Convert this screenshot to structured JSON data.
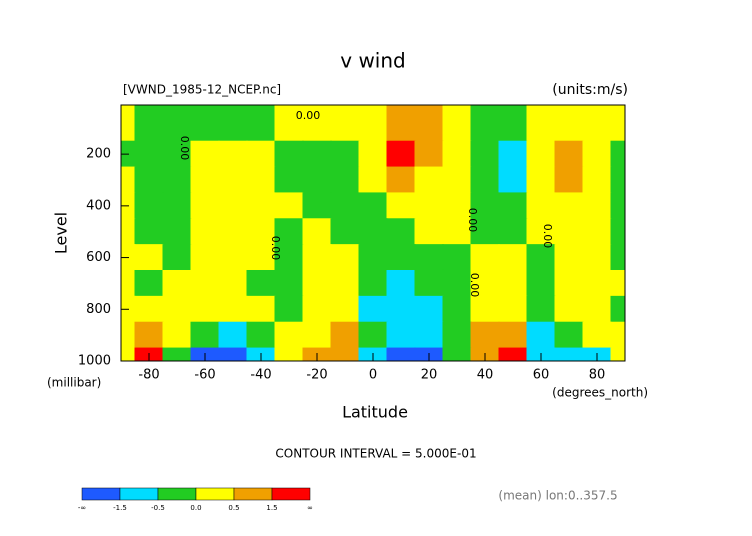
{
  "chart_data": {
    "type": "contour",
    "title": "v wind",
    "subtitle": "[VWND_1985-12_NCEP.nc]",
    "units": "(units:m/s)",
    "ylabel": "Level",
    "ylabel_units": "(millibar)",
    "xlabel": "Latitude",
    "xlabel_units": "(degrees_north)",
    "footer": "CONTOUR INTERVAL = 5.000E-01",
    "note": "(mean) lon:0..357.5",
    "annotations": [
      "0.00",
      "0.00",
      "0.00",
      "0.00",
      "0.00",
      "0.00"
    ],
    "x": [
      -90,
      -80,
      -70,
      -60,
      -50,
      -40,
      -30,
      -20,
      -10,
      0,
      10,
      20,
      30,
      40,
      50,
      60,
      70,
      80,
      90
    ],
    "y": [
      100,
      200,
      300,
      400,
      500,
      600,
      700,
      800,
      900,
      1000
    ],
    "z": [
      [
        0.25,
        -0.25,
        -0.25,
        -0.25,
        -0.25,
        -0.25,
        0.25,
        0.25,
        0.25,
        0.25,
        1,
        1,
        0.25,
        -0.25,
        -0.25,
        0.25,
        0.25,
        0.25,
        0.25
      ],
      [
        -0.25,
        -0.25,
        -0.25,
        0.25,
        0.25,
        0.25,
        -0.25,
        -0.25,
        -0.25,
        0.25,
        2,
        1,
        0.25,
        -0.25,
        -1,
        0.25,
        1,
        0.25,
        -0.25
      ],
      [
        0.25,
        -0.25,
        -0.25,
        0.25,
        0.25,
        0.25,
        -0.25,
        -0.25,
        -0.25,
        0.25,
        1,
        0.25,
        0.25,
        -0.25,
        -1,
        0.25,
        1,
        0.25,
        -0.25
      ],
      [
        0.25,
        -0.25,
        -0.25,
        0.25,
        0.25,
        0.25,
        0.25,
        -0.25,
        -0.25,
        -0.25,
        0.25,
        0.25,
        0.25,
        -0.25,
        -0.25,
        0.25,
        0.25,
        0.25,
        -0.25
      ],
      [
        0.25,
        -0.25,
        -0.25,
        0.25,
        0.25,
        0.25,
        -0.25,
        0.25,
        -0.25,
        -0.25,
        -0.25,
        0.25,
        0.25,
        -0.25,
        -0.25,
        0.25,
        0.25,
        0.25,
        -0.25
      ],
      [
        0.25,
        0.25,
        -0.25,
        0.25,
        0.25,
        0.25,
        -0.25,
        0.25,
        0.25,
        -0.25,
        -0.25,
        -0.25,
        -0.25,
        0.25,
        0.25,
        -0.25,
        0.25,
        0.25,
        -0.25
      ],
      [
        0.25,
        -0.25,
        0.25,
        0.25,
        0.25,
        -0.25,
        -0.25,
        0.25,
        0.25,
        -0.25,
        -1,
        -0.25,
        -0.25,
        0.25,
        0.25,
        -0.25,
        0.25,
        0.25,
        0.25
      ],
      [
        0.25,
        0.25,
        0.25,
        0.25,
        0.25,
        0.25,
        -0.25,
        0.25,
        0.25,
        -1,
        -1,
        -1,
        -0.25,
        0.25,
        0.25,
        -0.25,
        0.25,
        0.25,
        -0.25
      ],
      [
        0.25,
        1,
        0.25,
        -0.25,
        -1,
        -0.25,
        0.25,
        0.25,
        1,
        -0.25,
        -1,
        -1,
        -0.25,
        1,
        1,
        -1,
        -0.25,
        0.25,
        0.25
      ],
      [
        0.25,
        2,
        -0.25,
        -2,
        -2,
        -1,
        0.25,
        1,
        1,
        -1,
        -2,
        -2,
        -0.25,
        1,
        2,
        -1,
        -1,
        -1,
        0.25
      ]
    ],
    "xlim": [
      -90,
      90
    ],
    "xticks": [
      -80,
      -60,
      -40,
      -20,
      0,
      20,
      40,
      60,
      80
    ],
    "ylim": [
      1000,
      10
    ],
    "yticks": [
      200,
      400,
      600,
      800,
      1000
    ],
    "levels": [
      -1.5,
      -0.5,
      0,
      0.5,
      1.5
    ],
    "colors": [
      "#1e5aff",
      "#00dcff",
      "#22cc22",
      "#ffff00",
      "#f0a000",
      "#ff0000"
    ],
    "colorbar_labels": [
      "-∞",
      "-1.5",
      "-0.5",
      "0.0",
      "0.5",
      "1.5",
      "∞"
    ]
  }
}
